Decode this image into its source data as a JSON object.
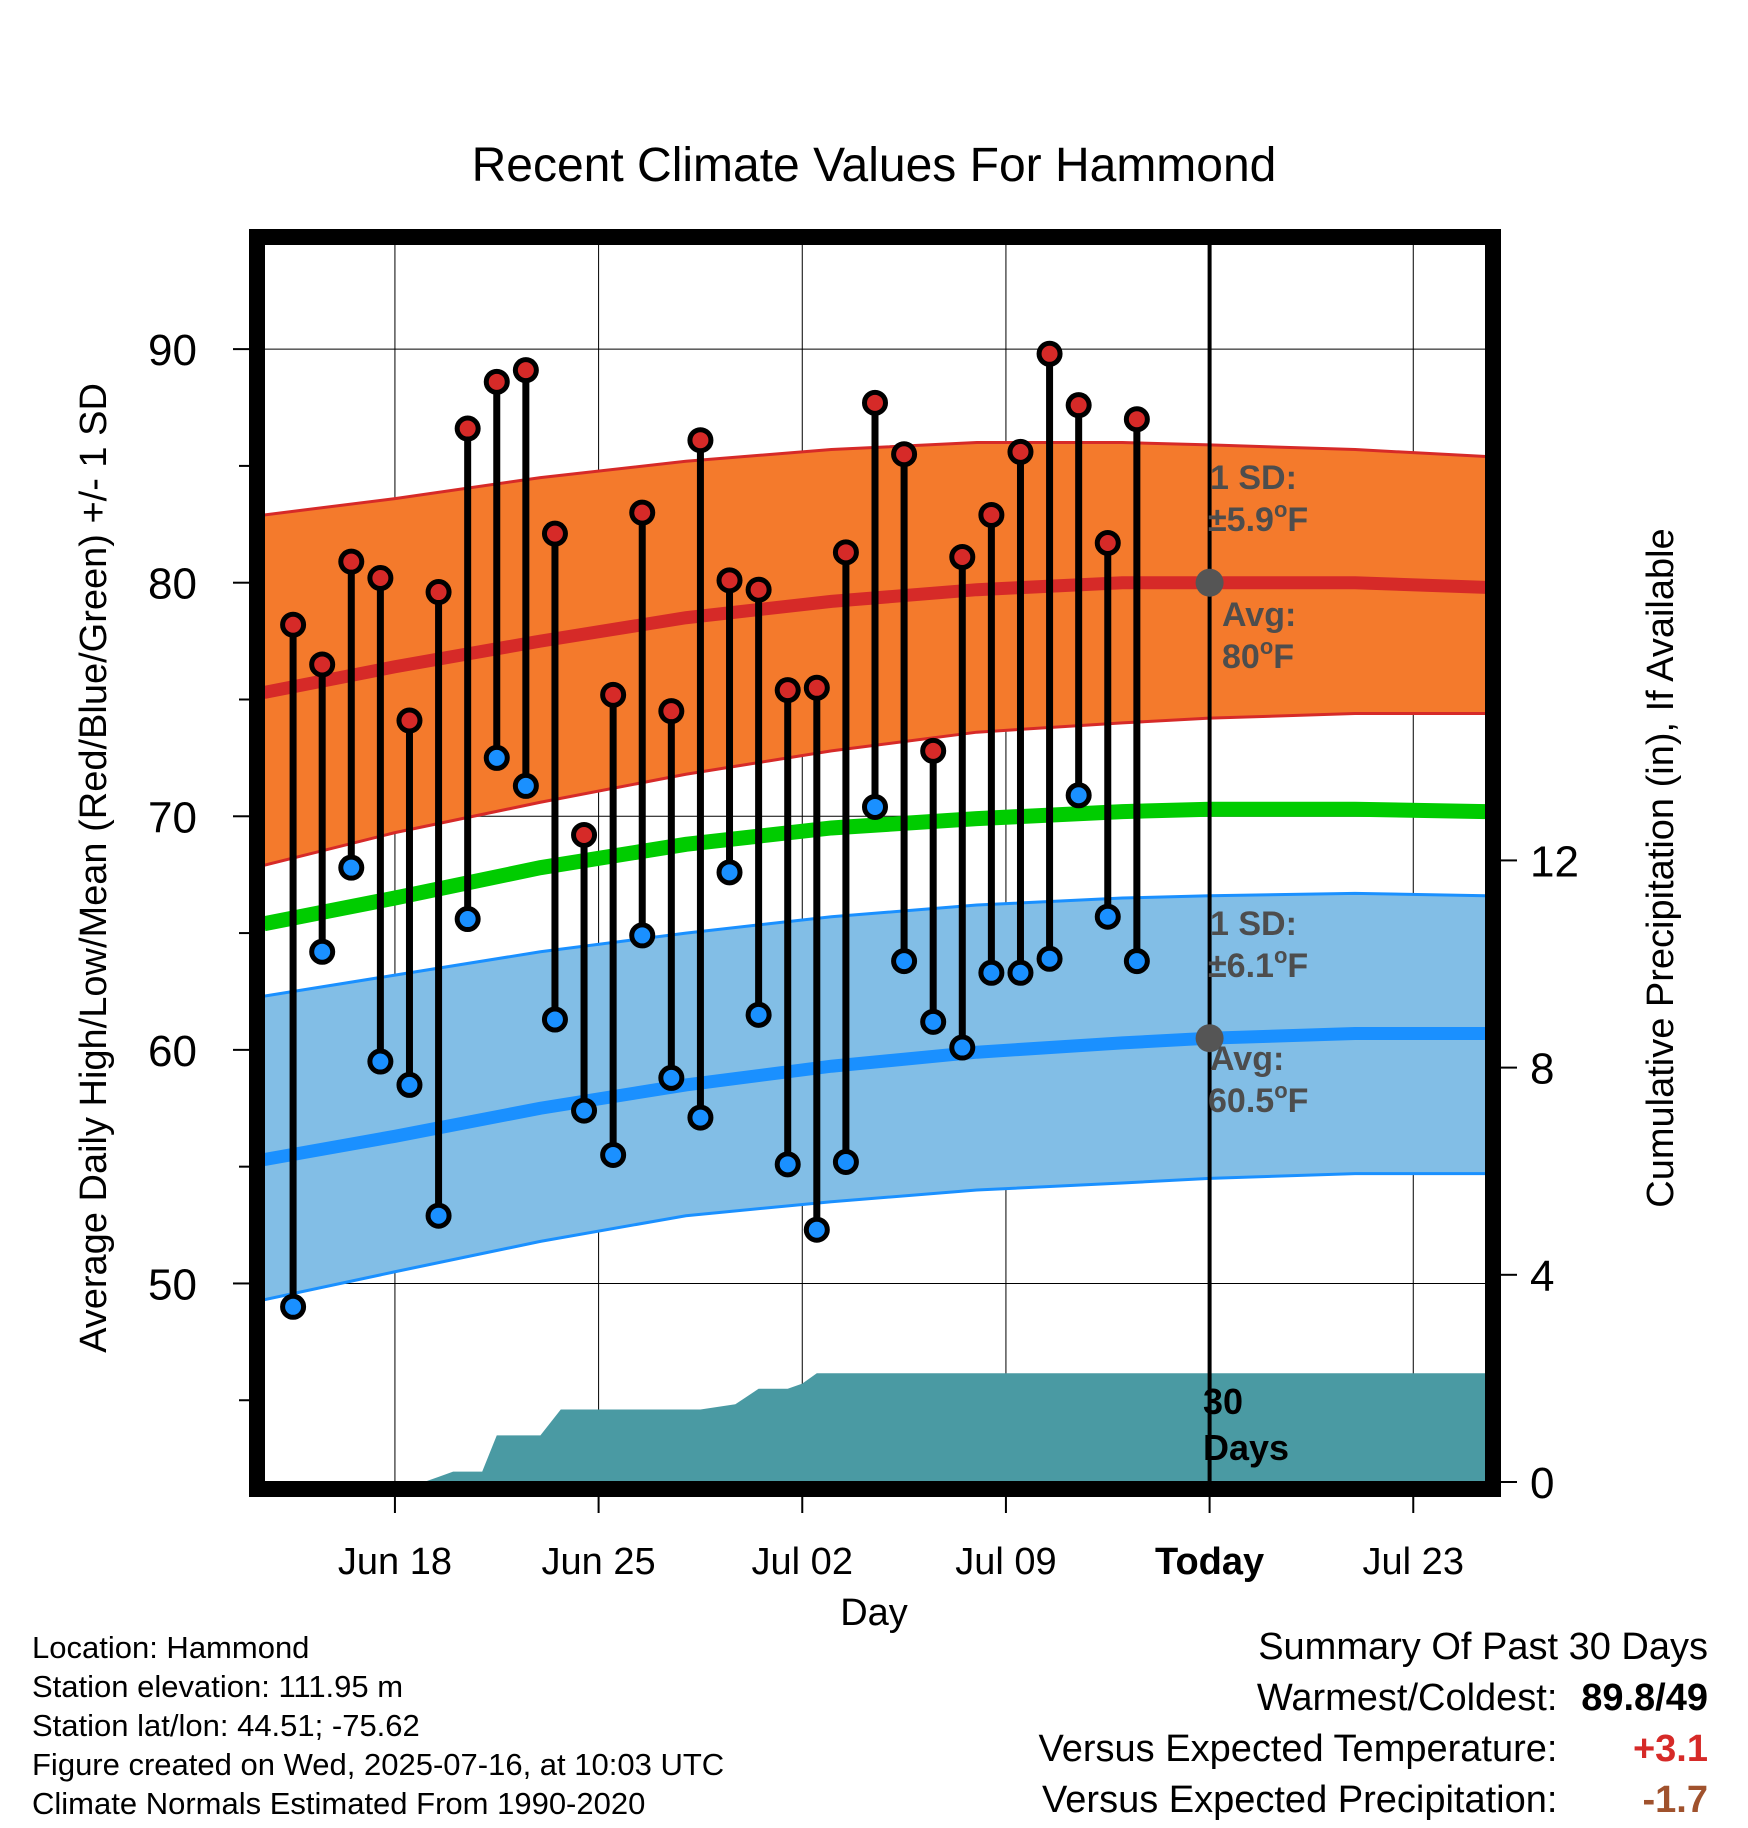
{
  "chart_data": {
    "type": "line",
    "title": "Recent Climate Values For Hammond",
    "xlabel": "Day",
    "ylabel": "Average Daily High/Low/Mean (Red/Blue/Green) +/- 1 SD",
    "y2label": "Cumulative Precipitation (in), If Available",
    "ylim": [
      41.5,
      94.5
    ],
    "y2lim": [
      0,
      23.9
    ],
    "xlim": [
      -4.5,
      37.5
    ],
    "x_ticks": [
      {
        "day": 0,
        "label": "Jun 18"
      },
      {
        "day": 7,
        "label": "Jun 25"
      },
      {
        "day": 14,
        "label": "Jul 02"
      },
      {
        "day": 21,
        "label": "Jul 09"
      },
      {
        "day": 28,
        "label": "Today"
      },
      {
        "day": 35,
        "label": "Jul 23"
      }
    ],
    "y_ticks": [
      50,
      60,
      70,
      80,
      90
    ],
    "y2_ticks": [
      0,
      4,
      8,
      12
    ],
    "grid": true,
    "today_day": 28,
    "daily_high": [
      78.2,
      76.5,
      80.9,
      80.2,
      74.1,
      79.6,
      86.6,
      88.6,
      89.1,
      82.1,
      69.2,
      75.2,
      83.0,
      74.5,
      86.1,
      80.1,
      79.7,
      75.4,
      75.5,
      81.3,
      87.7,
      85.5,
      72.8,
      81.1,
      82.9,
      85.6,
      89.8,
      87.6,
      81.7,
      87.0
    ],
    "daily_low": [
      49.0,
      64.2,
      67.8,
      59.5,
      58.5,
      52.9,
      65.6,
      72.5,
      71.3,
      61.3,
      57.4,
      55.5,
      64.9,
      58.8,
      57.1,
      67.6,
      61.5,
      55.1,
      52.3,
      55.2,
      70.4,
      63.8,
      61.2,
      60.1,
      63.3,
      63.3,
      63.9,
      70.9,
      65.7,
      63.8
    ],
    "normals": {
      "days": [
        -4.5,
        0,
        5,
        10,
        15,
        20,
        25,
        28,
        33,
        37.5
      ],
      "avg_high": [
        75.3,
        76.4,
        77.5,
        78.5,
        79.2,
        79.7,
        80.0,
        80.0,
        80.0,
        79.8
      ],
      "high_sd_upper": [
        82.9,
        83.6,
        84.5,
        85.2,
        85.7,
        86.0,
        86.0,
        85.9,
        85.7,
        85.4
      ],
      "high_sd_lower": [
        67.9,
        69.3,
        70.6,
        71.8,
        72.8,
        73.6,
        74.0,
        74.2,
        74.4,
        74.4
      ],
      "avg_mean": [
        65.4,
        66.5,
        67.8,
        68.8,
        69.5,
        69.9,
        70.2,
        70.3,
        70.3,
        70.2
      ],
      "avg_low": [
        55.3,
        56.3,
        57.5,
        58.5,
        59.3,
        59.9,
        60.3,
        60.5,
        60.7,
        60.7
      ],
      "low_sd_upper": [
        62.3,
        63.2,
        64.2,
        65.0,
        65.7,
        66.2,
        66.5,
        66.6,
        66.7,
        66.6
      ],
      "low_sd_lower": [
        49.3,
        50.5,
        51.8,
        52.9,
        53.5,
        54.0,
        54.3,
        54.5,
        54.7,
        54.7
      ]
    },
    "precip_cumulative": {
      "days": [
        -4.5,
        1.0,
        1.5,
        2.0,
        3.0,
        3.5,
        4.0,
        5.0,
        5.7,
        6.0,
        10.5,
        11.7,
        12.5,
        13.5,
        14.0,
        14.5,
        15.0,
        20.0,
        37.5
      ],
      "values": [
        0.0,
        0.0,
        0.1,
        0.2,
        0.2,
        0.9,
        0.9,
        0.9,
        1.4,
        1.4,
        1.4,
        1.5,
        1.8,
        1.8,
        1.9,
        2.1,
        2.1,
        2.1,
        2.1
      ]
    },
    "annotations": {
      "high_sd_label": "1 SD:",
      "high_sd_value": "±5.9",
      "high_avg_label": "Avg:",
      "high_avg_value": "80",
      "low_sd_label": "1 SD:",
      "low_sd_value": "±6.1",
      "low_avg_label": "Avg:",
      "low_avg_value": "60.5",
      "degree_unit": "o",
      "temp_unit": "F",
      "window_line1": "30",
      "window_line2": "Days"
    },
    "colors": {
      "high_band": "#f47a2c",
      "high_line": "#d62a28",
      "mean_line": "#00cc00",
      "low_band": "#82bee6",
      "low_line": "#1a90ff",
      "precip": "#4a9aa3",
      "high_dot": "#d62a28",
      "low_dot": "#1a90ff",
      "annotation": "#4d4d4d"
    }
  },
  "footer": {
    "location": "Location: Hammond",
    "elevation": "Station elevation: 111.95 m",
    "latlon": "Station lat/lon: 44.51; -75.62",
    "created": "Figure created on Wed, 2025-07-16, at 10:03 UTC",
    "normals": "Climate Normals Estimated From 1990-2020"
  },
  "summary": {
    "title": "Summary Of Past 30 Days",
    "warm_cold_label": "Warmest/Coldest:",
    "warmest": "89.8",
    "coldest": "49",
    "temp_label": "Versus Expected Temperature:",
    "temp_value": "+3.1",
    "temp_color": "#d62a28",
    "precip_label": "Versus Expected Precipitation:",
    "precip_value": "-1.7",
    "precip_color": "#a0522d"
  }
}
